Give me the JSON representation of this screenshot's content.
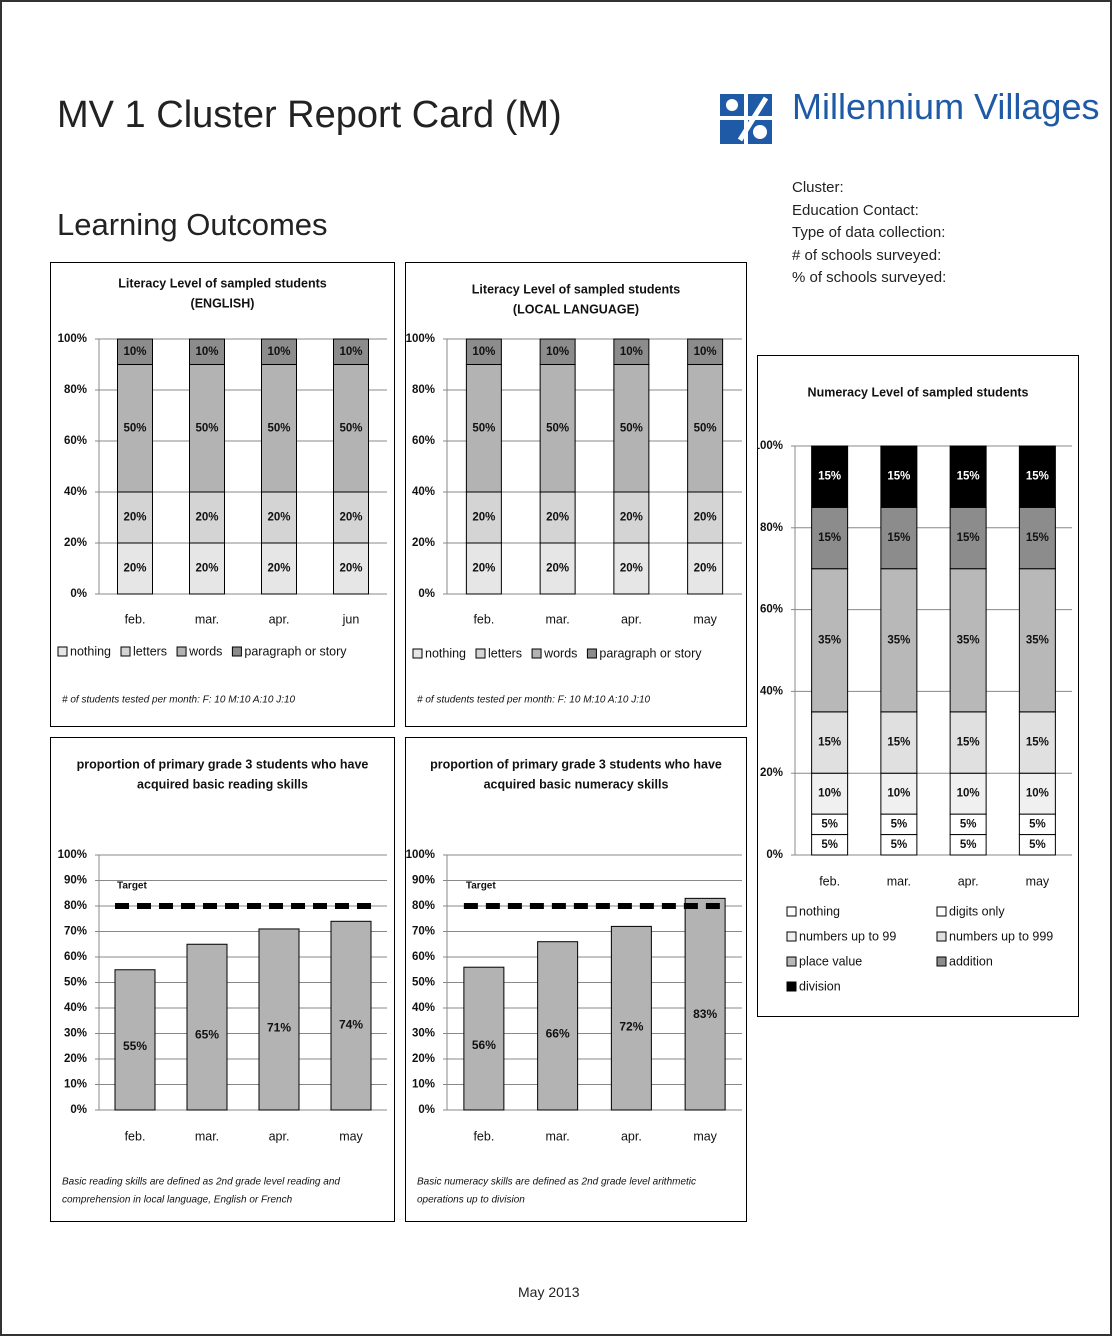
{
  "header": {
    "title": "MV 1 Cluster Report Card (M)",
    "logo": "Millennium Villages"
  },
  "section": "Learning Outcomes",
  "info": [
    "Cluster:",
    "Education Contact:",
    "Type of data collection:",
    "# of schools surveyed:",
    "% of schools surveyed:"
  ],
  "chart_data": [
    {
      "type": "stacked_bar",
      "title": [
        "Literacy Level of sampled students",
        "(ENGLISH)"
      ],
      "categories": [
        "feb.",
        "mar.",
        "apr.",
        "jun"
      ],
      "series": [
        {
          "name": "nothing",
          "color": "#e6e6e6",
          "values": [
            20,
            20,
            20,
            20
          ],
          "value_labels": [
            "20%",
            "20%",
            "20%",
            "20%"
          ]
        },
        {
          "name": "letters",
          "color": "#d4d4d4",
          "values": [
            20,
            20,
            20,
            20
          ],
          "value_labels": [
            "20%",
            "20%",
            "20%",
            "20%"
          ]
        },
        {
          "name": "words",
          "color": "#b3b3b3",
          "values": [
            50,
            50,
            50,
            50
          ],
          "value_labels": [
            "50%",
            "50%",
            "50%",
            "50%"
          ]
        },
        {
          "name": "paragraph or story",
          "color": "#8c8c8c",
          "values": [
            10,
            10,
            10,
            10
          ],
          "value_labels": [
            "10%",
            "10%",
            "10%",
            "10%"
          ]
        }
      ],
      "ylim": [
        0,
        100
      ],
      "yticks": [
        {
          "value": 0,
          "label": "0%"
        },
        {
          "value": 20,
          "label": "20%"
        },
        {
          "value": 40,
          "label": "40%"
        },
        {
          "value": 60,
          "label": "60%"
        },
        {
          "value": 80,
          "label": "80%"
        },
        {
          "value": 100,
          "label": "100%"
        }
      ],
      "grid": true,
      "legend": "bottom",
      "note": [
        "# of students tested per month: F: 10 M:10 A:10 J:10"
      ]
    },
    {
      "type": "stacked_bar",
      "title": [
        "Literacy Level of sampled students",
        "(LOCAL LANGUAGE)"
      ],
      "categories": [
        "feb.",
        "mar.",
        "apr.",
        "may"
      ],
      "series": [
        {
          "name": "nothing",
          "color": "#e6e6e6",
          "values": [
            20,
            20,
            20,
            20
          ],
          "value_labels": [
            "20%",
            "20%",
            "20%",
            "20%"
          ]
        },
        {
          "name": "letters",
          "color": "#d4d4d4",
          "values": [
            20,
            20,
            20,
            20
          ],
          "value_labels": [
            "20%",
            "20%",
            "20%",
            "20%"
          ]
        },
        {
          "name": "words",
          "color": "#b3b3b3",
          "values": [
            50,
            50,
            50,
            50
          ],
          "value_labels": [
            "50%",
            "50%",
            "50%",
            "50%"
          ]
        },
        {
          "name": "paragraph or story",
          "color": "#8c8c8c",
          "values": [
            10,
            10,
            10,
            10
          ],
          "value_labels": [
            "10%",
            "10%",
            "10%",
            "10%"
          ]
        }
      ],
      "ylim": [
        0,
        100
      ],
      "yticks": [
        {
          "value": 0,
          "label": "0%"
        },
        {
          "value": 20,
          "label": "20%"
        },
        {
          "value": 40,
          "label": "40%"
        },
        {
          "value": 60,
          "label": "60%"
        },
        {
          "value": 80,
          "label": "80%"
        },
        {
          "value": 100,
          "label": "100%"
        }
      ],
      "grid": true,
      "legend": "bottom",
      "note": [
        "# of students tested per month: F: 10 M:10 A:10 J:10"
      ]
    },
    {
      "type": "stacked_bar",
      "title": [
        "Numeracy Level of sampled students"
      ],
      "categories": [
        "feb.",
        "mar.",
        "apr.",
        "may"
      ],
      "series": [
        {
          "name": "nothing",
          "color": "#ffffff",
          "values": [
            5,
            5,
            5,
            5
          ],
          "value_labels": [
            "5%",
            "5%",
            "5%",
            "5%"
          ]
        },
        {
          "name": "digits only",
          "color": "#ffffff",
          "values": [
            5,
            5,
            5,
            5
          ],
          "value_labels": [
            "5%",
            "5%",
            "5%",
            "5%"
          ]
        },
        {
          "name": "numbers up to 99",
          "color": "#f0f0f0",
          "values": [
            10,
            10,
            10,
            10
          ],
          "value_labels": [
            "10%",
            "10%",
            "10%",
            "10%"
          ]
        },
        {
          "name": "numbers up to 999",
          "color": "#e0e0e0",
          "values": [
            15,
            15,
            15,
            15
          ],
          "value_labels": [
            "15%",
            "15%",
            "15%",
            "15%"
          ]
        },
        {
          "name": "place value",
          "color": "#b8b8b8",
          "values": [
            35,
            35,
            35,
            35
          ],
          "value_labels": [
            "35%",
            "35%",
            "35%",
            "35%"
          ]
        },
        {
          "name": "addition",
          "color": "#8c8c8c",
          "values": [
            15,
            15,
            15,
            15
          ],
          "value_labels": [
            "15%",
            "15%",
            "15%",
            "15%"
          ]
        },
        {
          "name": "division",
          "color": "#000000",
          "values": [
            15,
            15,
            15,
            15
          ],
          "value_labels": [
            "15%",
            "15%",
            "15%",
            "15%"
          ]
        }
      ],
      "ylim": [
        0,
        100
      ],
      "yticks": [
        {
          "value": 0,
          "label": "0%"
        },
        {
          "value": 20,
          "label": "20%"
        },
        {
          "value": 40,
          "label": "40%"
        },
        {
          "value": 60,
          "label": "60%"
        },
        {
          "value": 80,
          "label": "80%"
        },
        {
          "value": 100,
          "label": "100%"
        }
      ],
      "grid": true,
      "legend": "bottom"
    },
    {
      "type": "bar",
      "title": [
        "proportion of primary grade 3 students who have",
        "acquired basic reading skills"
      ],
      "categories": [
        "feb.",
        "mar.",
        "apr.",
        "may"
      ],
      "values": [
        55,
        65,
        71,
        74
      ],
      "value_labels": [
        "55%",
        "65%",
        "71%",
        "74%"
      ],
      "color": "#b3b3b3",
      "target": 80,
      "target_label": "Target",
      "ylim": [
        0,
        100
      ],
      "yticks": [
        {
          "value": 0,
          "label": "0%"
        },
        {
          "value": 10,
          "label": "10%"
        },
        {
          "value": 20,
          "label": "20%"
        },
        {
          "value": 30,
          "label": "30%"
        },
        {
          "value": 40,
          "label": "40%"
        },
        {
          "value": 50,
          "label": "50%"
        },
        {
          "value": 60,
          "label": "60%"
        },
        {
          "value": 70,
          "label": "70%"
        },
        {
          "value": 80,
          "label": "80%"
        },
        {
          "value": 90,
          "label": "90%"
        },
        {
          "value": 100,
          "label": "100%"
        }
      ],
      "grid": true,
      "note": [
        "Basic reading skills are defined as 2nd grade level reading and",
        "comprehension in local language, English or French"
      ]
    },
    {
      "type": "bar",
      "title": [
        "proportion of primary grade 3 students who have",
        "acquired basic numeracy skills"
      ],
      "categories": [
        "feb.",
        "mar.",
        "apr.",
        "may"
      ],
      "values": [
        56,
        66,
        72,
        83
      ],
      "value_labels": [
        "56%",
        "66%",
        "72%",
        "83%"
      ],
      "color": "#b3b3b3",
      "target": 80,
      "target_label": "Target",
      "ylim": [
        0,
        100
      ],
      "yticks": [
        {
          "value": 0,
          "label": "0%"
        },
        {
          "value": 10,
          "label": "10%"
        },
        {
          "value": 20,
          "label": "20%"
        },
        {
          "value": 30,
          "label": "30%"
        },
        {
          "value": 40,
          "label": "40%"
        },
        {
          "value": 50,
          "label": "50%"
        },
        {
          "value": 60,
          "label": "60%"
        },
        {
          "value": 70,
          "label": "70%"
        },
        {
          "value": 80,
          "label": "80%"
        },
        {
          "value": 90,
          "label": "90%"
        },
        {
          "value": 100,
          "label": "100%"
        }
      ],
      "grid": true,
      "note": [
        "Basic numeracy skills are defined as 2nd grade level arithmetic",
        "operations up to division"
      ]
    }
  ],
  "footer": "May 2013"
}
